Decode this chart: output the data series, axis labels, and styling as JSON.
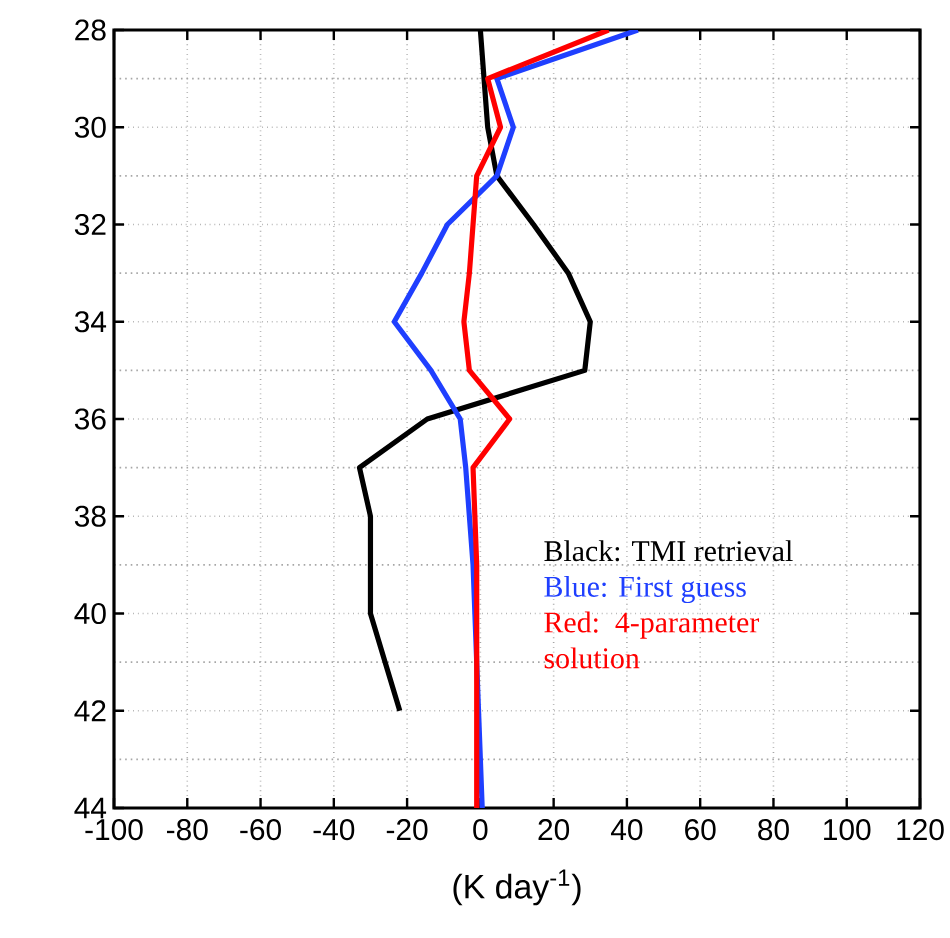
{
  "chart_data": {
    "type": "line",
    "xlabel": "(K day$^{-1}$)",
    "xlim": [
      -100,
      120
    ],
    "xticks": [
      -100,
      -80,
      -60,
      -40,
      -20,
      0,
      20,
      40,
      60,
      80,
      100,
      120
    ],
    "ylim": [
      44,
      28
    ],
    "yticks": [
      28,
      30,
      32,
      34,
      36,
      38,
      40,
      42,
      44
    ],
    "grid": true,
    "legend": "bottom right",
    "marker": "none",
    "line_style": "solid",
    "series": [
      {
        "name": "Black: TMI  retrieval",
        "color": "#000000",
        "x": [
          0,
          1,
          2,
          4.5,
          14.5,
          24,
          30,
          28.5,
          -14.5,
          -33,
          -30,
          -30,
          -26,
          -22
        ],
        "values": [
          28,
          29,
          30,
          31,
          32,
          33,
          34,
          35,
          36,
          37,
          38,
          40,
          41,
          42
        ]
      },
      {
        "name": "Blue:   First guess",
        "color": "#1f3fff",
        "x": [
          43,
          4.5,
          9,
          4.5,
          -9,
          -16,
          -23.5,
          -13.5,
          -5.5,
          -4,
          -3,
          -2,
          -1.5,
          -1,
          -0.5,
          0,
          0.5
        ],
        "values": [
          28,
          29,
          30,
          31,
          32,
          33,
          34,
          35,
          36,
          37,
          38,
          39,
          40,
          41,
          42,
          43,
          44
        ]
      },
      {
        "name": "Red:   4-parameter solution",
        "color": "#ff0000",
        "x": [
          35,
          2,
          5.5,
          -1,
          -2,
          -3,
          -4.5,
          -3,
          8,
          -2,
          -1.5,
          -1,
          -1,
          -1,
          -1,
          -1,
          -1
        ],
        "values": [
          28,
          29,
          30,
          31,
          32,
          33,
          34,
          35,
          36,
          37,
          38,
          39,
          40,
          41,
          42,
          43,
          44
        ]
      }
    ]
  }
}
